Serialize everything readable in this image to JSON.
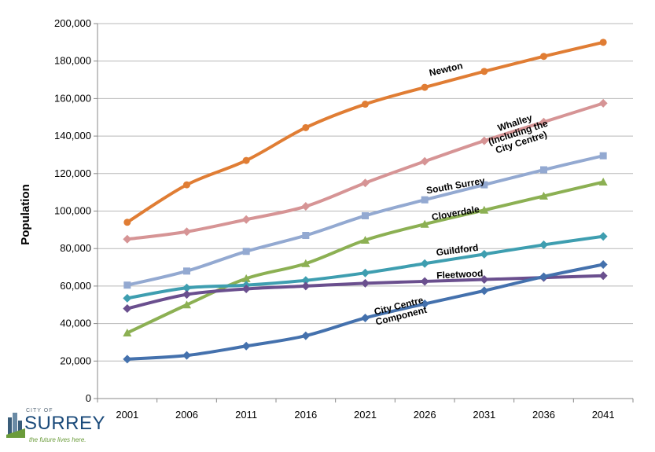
{
  "chart_data": {
    "type": "line",
    "ylabel": "Population",
    "xlabel": "",
    "categories": [
      "2001",
      "2006",
      "2011",
      "2016",
      "2021",
      "2026",
      "2031",
      "2036",
      "2041"
    ],
    "ylim": [
      0,
      200000
    ],
    "ytick_labels": [
      "0",
      "20,000",
      "40,000",
      "60,000",
      "80,000",
      "100,000",
      "120,000",
      "140,000",
      "160,000",
      "180,000",
      "200,000"
    ],
    "grid": true,
    "legend": "none (inline labels)",
    "series": [
      {
        "name": "Newton",
        "label_lines": [
          "Newton"
        ],
        "color": "#E07D34",
        "marker": "circle",
        "values": [
          94000,
          114000,
          127000,
          144500,
          157000,
          166000,
          174500,
          182500,
          190000
        ]
      },
      {
        "name": "Whalley (Including the City Centre)",
        "label_lines": [
          "Whalley",
          "(Including the",
          "City Centre)"
        ],
        "color": "#D69495",
        "marker": "diamond",
        "values": [
          85000,
          89000,
          95500,
          102500,
          115000,
          126500,
          137500,
          147500,
          157500
        ]
      },
      {
        "name": "South Surrey",
        "label_lines": [
          "South Surrey"
        ],
        "color": "#93A9D1",
        "marker": "square",
        "values": [
          60500,
          68000,
          78500,
          87000,
          97500,
          106000,
          114000,
          122000,
          129500
        ]
      },
      {
        "name": "Cloverdale",
        "label_lines": [
          "Cloverdale"
        ],
        "color": "#8CB053",
        "marker": "triangle",
        "values": [
          35000,
          50000,
          64000,
          72000,
          84500,
          93000,
          100500,
          108000,
          115500
        ]
      },
      {
        "name": "Guildford",
        "label_lines": [
          "Guildford"
        ],
        "color": "#3E9EB0",
        "marker": "diamond",
        "values": [
          53500,
          59000,
          60500,
          63000,
          67000,
          72000,
          77000,
          82000,
          86500
        ]
      },
      {
        "name": "Fleetwood",
        "label_lines": [
          "Fleetwood"
        ],
        "color": "#6A4F8E",
        "marker": "diamond",
        "values": [
          48000,
          55500,
          58500,
          60000,
          61500,
          62500,
          63500,
          64500,
          65500
        ]
      },
      {
        "name": "City Centre Component",
        "label_lines": [
          "City Centre",
          "Component"
        ],
        "color": "#4471AD",
        "marker": "diamond",
        "values": [
          21000,
          23000,
          28000,
          33500,
          43000,
          50500,
          57500,
          65000,
          71500
        ]
      }
    ]
  },
  "logo": {
    "top": "CITY OF",
    "name": "SURREY",
    "tagline": "the future lives here.",
    "colors": {
      "name": "#1a4a7a",
      "tagline": "#6a9b3a",
      "icon": "#3a5d7a"
    }
  }
}
